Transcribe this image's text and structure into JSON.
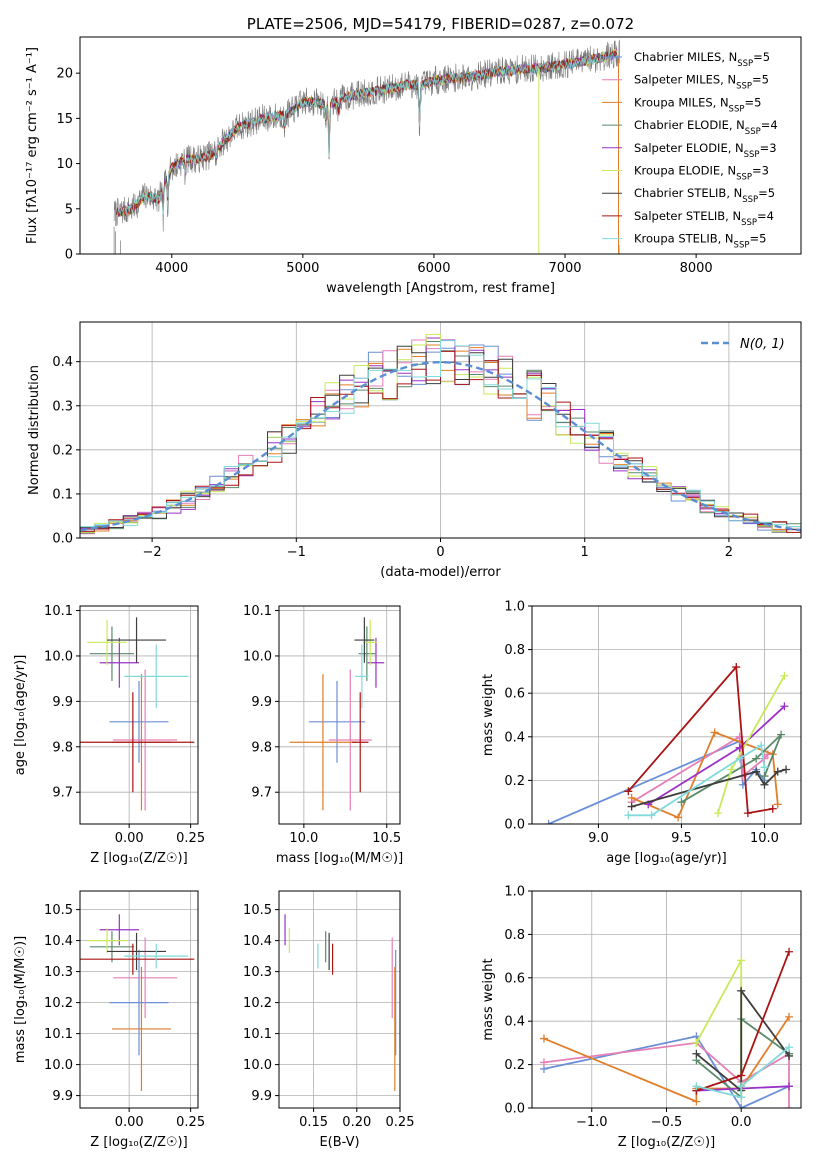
{
  "colors": {
    "Chabrier MILES": "#6a8fd8",
    "Salpeter MILES": "#e57fb8",
    "Kroupa MILES": "#e07e2a",
    "Chabrier ELODIE": "#5a8a6a",
    "Salpeter ELODIE": "#9a32c8",
    "Kroupa ELODIE": "#c8ea5a",
    "Chabrier STELIB": "#3e3e3e",
    "Salpeter STELIB": "#aa1414",
    "Kroupa STELIB": "#80dada"
  },
  "chart_data": [
    {
      "id": "spectrum",
      "type": "line",
      "title": "PLATE=2506, MJD=54179, FIBERID=0287, z=0.072",
      "xlabel": "wavelength [Angstrom, rest frame]",
      "ylabel": "Flux [fλ10⁻¹⁷ erg cm⁻² s⁻¹ A⁻¹]",
      "xlim": [
        3300,
        8800
      ],
      "ylim": [
        0,
        24
      ],
      "xticks": [
        4000,
        5000,
        6000,
        7000,
        8000
      ],
      "yticks": [
        0,
        5,
        10,
        15,
        20
      ],
      "legend": [
        {
          "label": "Chabrier MILES, N",
          "sub": "SSP",
          "val": "=5",
          "color": "#6a8fd8"
        },
        {
          "label": "Salpeter MILES, N",
          "sub": "SSP",
          "val": "=5",
          "color": "#e57fb8"
        },
        {
          "label": "Kroupa MILES, N",
          "sub": "SSP",
          "val": "=5",
          "color": "#e07e2a"
        },
        {
          "label": "Chabrier ELODIE, N",
          "sub": "SSP",
          "val": "=4",
          "color": "#5a8a6a"
        },
        {
          "label": "Salpeter ELODIE, N",
          "sub": "SSP",
          "val": "=3",
          "color": "#9a32c8"
        },
        {
          "label": "Kroupa ELODIE, N",
          "sub": "SSP",
          "val": "=3",
          "color": "#c8ea5a"
        },
        {
          "label": "Chabrier STELIB, N",
          "sub": "SSP",
          "val": "=5",
          "color": "#3e3e3e"
        },
        {
          "label": "Salpeter STELIB, N",
          "sub": "SSP",
          "val": "=4",
          "color": "#aa1414"
        },
        {
          "label": "Kroupa STELIB, N",
          "sub": "SSP",
          "val": "=5",
          "color": "#80dada"
        }
      ],
      "continuum": [
        [
          3560,
          4.5
        ],
        [
          3700,
          5.0
        ],
        [
          3800,
          6.5
        ],
        [
          3900,
          6.0
        ],
        [
          3950,
          8.0
        ],
        [
          4000,
          9.5
        ],
        [
          4100,
          10.5
        ],
        [
          4200,
          10.5
        ],
        [
          4300,
          11.0
        ],
        [
          4400,
          12.5
        ],
        [
          4500,
          14.0
        ],
        [
          4600,
          14.5
        ],
        [
          4700,
          15.0
        ],
        [
          4800,
          15.2
        ],
        [
          4900,
          15.6
        ],
        [
          5000,
          16.8
        ],
        [
          5100,
          16.8
        ],
        [
          5200,
          16.5
        ],
        [
          5300,
          17.2
        ],
        [
          5400,
          17.6
        ],
        [
          5500,
          17.9
        ],
        [
          5600,
          18.1
        ],
        [
          5700,
          18.4
        ],
        [
          5800,
          18.8
        ],
        [
          5900,
          18.6
        ],
        [
          6000,
          19.2
        ],
        [
          6100,
          19.4
        ],
        [
          6200,
          19.5
        ],
        [
          6300,
          19.7
        ],
        [
          6400,
          19.9
        ],
        [
          6500,
          20.2
        ],
        [
          6600,
          20.3
        ],
        [
          6700,
          20.5
        ],
        [
          6800,
          20.6
        ],
        [
          6900,
          20.7
        ],
        [
          7000,
          21.0
        ],
        [
          7100,
          21.2
        ],
        [
          7200,
          21.5
        ],
        [
          7300,
          21.8
        ],
        [
          7400,
          22.2
        ]
      ],
      "dips": [
        [
          3934,
          -3.5
        ],
        [
          3969,
          -3.0
        ],
        [
          4102,
          -1.5
        ],
        [
          4340,
          -1.5
        ],
        [
          4861,
          -2.0
        ],
        [
          5175,
          -3.0
        ],
        [
          5200,
          -7.0
        ],
        [
          5270,
          -1.5
        ],
        [
          5890,
          -5.5
        ]
      ]
    },
    {
      "id": "residuals",
      "type": "line",
      "xlabel": "(data-model)/error",
      "ylabel": "Normed distribution",
      "xlim": [
        -2.5,
        2.5
      ],
      "ylim": [
        0,
        0.49
      ],
      "xticks": [
        -2,
        -1,
        0,
        1,
        2
      ],
      "yticks": [
        0.0,
        0.1,
        0.2,
        0.3,
        0.4
      ],
      "legend": [
        {
          "label": "N(0, 1)",
          "color": "#5b8fd4"
        }
      ],
      "bin_width": 0.1
    },
    {
      "id": "age_vs_Z",
      "type": "scatter",
      "xlabel": "Z [log₁₀(Z/Z☉)]",
      "ylabel": "age  [log₁₀(age/yr)]",
      "xlim": [
        -0.2,
        0.28
      ],
      "ylim": [
        9.63,
        10.11
      ],
      "xticks": [
        0.0,
        0.25
      ],
      "yticks": [
        9.7,
        9.8,
        9.9,
        10.0,
        10.1
      ],
      "points": [
        {
          "model": "Chabrier MILES",
          "x": 0.04,
          "xerr": 0.12,
          "y": 9.855,
          "yerr": 0.09
        },
        {
          "model": "Salpeter MILES",
          "x": 0.065,
          "xerr": 0.13,
          "y": 9.815,
          "yerr": 0.155
        },
        {
          "model": "Kroupa MILES",
          "x": 0.05,
          "xerr": 0.12,
          "y": 9.81,
          "yerr": 0.15
        },
        {
          "model": "Chabrier ELODIE",
          "x": -0.07,
          "xerr": 0.09,
          "y": 10.005,
          "yerr": 0.06
        },
        {
          "model": "Salpeter ELODIE",
          "x": -0.04,
          "xerr": 0.08,
          "y": 9.985,
          "yerr": 0.055
        },
        {
          "model": "Kroupa ELODIE",
          "x": -0.09,
          "xerr": 0.08,
          "y": 10.03,
          "yerr": 0.05
        },
        {
          "model": "Chabrier STELIB",
          "x": 0.03,
          "xerr": 0.12,
          "y": 10.035,
          "yerr": 0.05
        },
        {
          "model": "Salpeter STELIB",
          "x": 0.015,
          "xerr": 0.25,
          "y": 9.81,
          "yerr": 0.11
        },
        {
          "model": "Kroupa STELIB",
          "x": 0.11,
          "xerr": 0.13,
          "y": 9.955,
          "yerr": 0.07
        }
      ]
    },
    {
      "id": "age_vs_mass",
      "type": "scatter",
      "xlabel": "mass [log₁₀(M/M☉)]",
      "ylabel": "",
      "xlim": [
        9.85,
        10.58
      ],
      "ylim": [
        9.63,
        10.11
      ],
      "xticks": [
        10.0,
        10.5
      ],
      "yticks": [
        9.7,
        9.8,
        9.9,
        10.0,
        10.1
      ],
      "points": [
        {
          "model": "Chabrier MILES",
          "x": 10.2,
          "xerr": 0.17,
          "y": 9.855,
          "yerr": 0.09
        },
        {
          "model": "Salpeter MILES",
          "x": 10.28,
          "xerr": 0.13,
          "y": 9.815,
          "yerr": 0.155
        },
        {
          "model": "Kroupa MILES",
          "x": 10.115,
          "xerr": 0.2,
          "y": 9.81,
          "yerr": 0.15
        },
        {
          "model": "Chabrier ELODIE",
          "x": 10.38,
          "xerr": 0.05,
          "y": 10.005,
          "yerr": 0.06
        },
        {
          "model": "Salpeter ELODIE",
          "x": 10.435,
          "xerr": 0.05,
          "y": 9.985,
          "yerr": 0.055
        },
        {
          "model": "Kroupa ELODIE",
          "x": 10.4,
          "xerr": 0.04,
          "y": 10.03,
          "yerr": 0.05
        },
        {
          "model": "Chabrier STELIB",
          "x": 10.365,
          "xerr": 0.06,
          "y": 10.035,
          "yerr": 0.05
        },
        {
          "model": "Salpeter STELIB",
          "x": 10.34,
          "xerr": 0.05,
          "y": 9.81,
          "yerr": 0.11
        },
        {
          "model": "Kroupa STELIB",
          "x": 10.35,
          "xerr": 0.04,
          "y": 9.955,
          "yerr": 0.07
        }
      ]
    },
    {
      "id": "weight_vs_age",
      "type": "line",
      "xlabel": "age  [log₁₀(age/yr)]",
      "ylabel": "mass weight",
      "xlim": [
        8.6,
        10.22
      ],
      "ylim": [
        0,
        1.0
      ],
      "xticks": [
        9.0,
        9.5,
        10.0
      ],
      "yticks": [
        0.0,
        0.2,
        0.4,
        0.6,
        0.8,
        1.0
      ],
      "series": [
        {
          "model": "Chabrier MILES",
          "points": [
            [
              8.7,
              0.0
            ],
            [
              9.85,
              0.38
            ],
            [
              9.87,
              0.18
            ],
            [
              9.95,
              0.25
            ],
            [
              10.0,
              0.2
            ]
          ]
        },
        {
          "model": "Salpeter MILES",
          "points": [
            [
              9.2,
              0.1
            ],
            [
              9.85,
              0.4
            ],
            [
              9.87,
              0.22
            ],
            [
              10.0,
              0.3
            ],
            [
              10.02,
              0.32
            ]
          ]
        },
        {
          "model": "Kroupa MILES",
          "points": [
            [
              9.2,
              0.12
            ],
            [
              9.48,
              0.03
            ],
            [
              9.7,
              0.42
            ],
            [
              10.05,
              0.32
            ],
            [
              10.08,
              0.09
            ]
          ]
        },
        {
          "model": "Chabrier ELODIE",
          "points": [
            [
              9.5,
              0.1
            ],
            [
              9.95,
              0.3
            ],
            [
              10.1,
              0.41
            ],
            [
              10.0,
              0.22
            ]
          ]
        },
        {
          "model": "Salpeter ELODIE",
          "points": [
            [
              9.3,
              0.09
            ],
            [
              9.85,
              0.35
            ],
            [
              10.12,
              0.54
            ]
          ]
        },
        {
          "model": "Kroupa ELODIE",
          "points": [
            [
              9.72,
              0.05
            ],
            [
              9.8,
              0.25
            ],
            [
              10.12,
              0.68
            ]
          ]
        },
        {
          "model": "Chabrier STELIB",
          "points": [
            [
              9.2,
              0.08
            ],
            [
              9.95,
              0.24
            ],
            [
              10.0,
              0.18
            ],
            [
              10.08,
              0.24
            ],
            [
              10.13,
              0.25
            ]
          ]
        },
        {
          "model": "Salpeter STELIB",
          "points": [
            [
              9.18,
              0.15
            ],
            [
              9.83,
              0.72
            ],
            [
              9.9,
              0.05
            ],
            [
              10.05,
              0.07
            ]
          ]
        },
        {
          "model": "Kroupa STELIB",
          "points": [
            [
              9.18,
              0.04
            ],
            [
              9.32,
              0.04
            ],
            [
              9.85,
              0.3
            ],
            [
              9.98,
              0.36
            ],
            [
              10.0,
              0.26
            ]
          ]
        }
      ]
    },
    {
      "id": "mass_vs_Z",
      "type": "scatter",
      "xlabel": "Z [log₁₀(Z/Z☉)]",
      "ylabel": "mass [log₁₀(M/M☉)]",
      "xlim": [
        -0.2,
        0.28
      ],
      "ylim": [
        9.86,
        10.56
      ],
      "xticks": [
        0.0,
        0.25
      ],
      "yticks": [
        9.9,
        10.0,
        10.1,
        10.2,
        10.3,
        10.4,
        10.5
      ],
      "points": [
        {
          "model": "Chabrier MILES",
          "x": 0.04,
          "xerr": 0.12,
          "y": 10.2,
          "yerr": 0.17
        },
        {
          "model": "Salpeter MILES",
          "x": 0.065,
          "xerr": 0.13,
          "y": 10.28,
          "yerr": 0.13
        },
        {
          "model": "Kroupa MILES",
          "x": 0.05,
          "xerr": 0.12,
          "y": 10.115,
          "yerr": 0.2
        },
        {
          "model": "Chabrier ELODIE",
          "x": -0.07,
          "xerr": 0.09,
          "y": 10.38,
          "yerr": 0.05
        },
        {
          "model": "Salpeter ELODIE",
          "x": -0.04,
          "xerr": 0.08,
          "y": 10.435,
          "yerr": 0.05
        },
        {
          "model": "Kroupa ELODIE",
          "x": -0.09,
          "xerr": 0.08,
          "y": 10.4,
          "yerr": 0.04
        },
        {
          "model": "Chabrier STELIB",
          "x": 0.03,
          "xerr": 0.12,
          "y": 10.365,
          "yerr": 0.06
        },
        {
          "model": "Salpeter STELIB",
          "x": 0.015,
          "xerr": 0.25,
          "y": 10.34,
          "yerr": 0.05
        },
        {
          "model": "Kroupa STELIB",
          "x": 0.11,
          "xerr": 0.13,
          "y": 10.35,
          "yerr": 0.04
        }
      ]
    },
    {
      "id": "mass_vs_EBV",
      "type": "scatter",
      "xlabel": "E(B-V)",
      "ylabel": "",
      "xlim": [
        0.11,
        0.25
      ],
      "ylim": [
        9.86,
        10.56
      ],
      "xticks": [
        0.15,
        0.2,
        0.25
      ],
      "yticks": [
        9.9,
        10.0,
        10.1,
        10.2,
        10.3,
        10.4,
        10.5
      ],
      "points": [
        {
          "model": "Chabrier MILES",
          "x": 0.245,
          "xerr": 0,
          "y": 10.2,
          "yerr": 0.17
        },
        {
          "model": "Salpeter MILES",
          "x": 0.241,
          "xerr": 0,
          "y": 10.28,
          "yerr": 0.13
        },
        {
          "model": "Kroupa MILES",
          "x": 0.244,
          "xerr": 0,
          "y": 10.115,
          "yerr": 0.2
        },
        {
          "model": "Chabrier ELODIE",
          "x": 0.164,
          "xerr": 0,
          "y": 10.38,
          "yerr": 0.05
        },
        {
          "model": "Salpeter ELODIE",
          "x": 0.117,
          "xerr": 0,
          "y": 10.435,
          "yerr": 0.05
        },
        {
          "model": "Kroupa ELODIE",
          "x": 0.122,
          "xerr": 0,
          "y": 10.4,
          "yerr": 0.04
        },
        {
          "model": "Chabrier STELIB",
          "x": 0.168,
          "xerr": 0,
          "y": 10.365,
          "yerr": 0.06
        },
        {
          "model": "Salpeter STELIB",
          "x": 0.172,
          "xerr": 0,
          "y": 10.34,
          "yerr": 0.05
        },
        {
          "model": "Kroupa STELIB",
          "x": 0.155,
          "xerr": 0,
          "y": 10.35,
          "yerr": 0.04
        }
      ]
    },
    {
      "id": "weight_vs_Z",
      "type": "line",
      "xlabel": "Z [log₁₀(Z/Z☉)]",
      "ylabel": "mass weight",
      "xlim": [
        -1.4,
        0.4
      ],
      "ylim": [
        0,
        1.0
      ],
      "xticks": [
        -1.0,
        -0.5,
        0.0
      ],
      "yticks": [
        0.0,
        0.2,
        0.4,
        0.6,
        0.8,
        1.0
      ],
      "series": [
        {
          "model": "Chabrier MILES",
          "points": [
            [
              -1.32,
              0.18
            ],
            [
              -0.3,
              0.33
            ],
            [
              0.0,
              0.0
            ],
            [
              0.32,
              0.1
            ]
          ]
        },
        {
          "model": "Salpeter MILES",
          "points": [
            [
              -1.32,
              0.21
            ],
            [
              -0.3,
              0.3
            ],
            [
              0.0,
              0.12
            ],
            [
              0.32,
              0.25
            ],
            [
              0.32,
              0.0
            ]
          ]
        },
        {
          "model": "Kroupa MILES",
          "points": [
            [
              -1.32,
              0.32
            ],
            [
              -0.3,
              0.03
            ],
            [
              -0.3,
              0.09
            ],
            [
              0.0,
              0.09
            ],
            [
              0.32,
              0.42
            ]
          ]
        },
        {
          "model": "Chabrier ELODIE",
          "points": [
            [
              -0.3,
              0.22
            ],
            [
              0.0,
              0.05
            ],
            [
              0.0,
              0.41
            ],
            [
              0.32,
              0.25
            ]
          ]
        },
        {
          "model": "Salpeter ELODIE",
          "points": [
            [
              -0.3,
              0.08
            ],
            [
              0.0,
              0.09
            ],
            [
              0.32,
              0.1
            ]
          ]
        },
        {
          "model": "Kroupa ELODIE",
          "points": [
            [
              -0.3,
              0.3
            ],
            [
              0.0,
              0.68
            ],
            [
              0.0,
              0.05
            ]
          ]
        },
        {
          "model": "Chabrier STELIB",
          "points": [
            [
              -0.3,
              0.25
            ],
            [
              0.0,
              0.08
            ],
            [
              0.0,
              0.54
            ],
            [
              0.32,
              0.24
            ]
          ]
        },
        {
          "model": "Salpeter STELIB",
          "points": [
            [
              -0.3,
              0.08
            ],
            [
              0.0,
              0.15
            ],
            [
              0.32,
              0.72
            ]
          ]
        },
        {
          "model": "Kroupa STELIB",
          "points": [
            [
              -0.3,
              0.1
            ],
            [
              0.0,
              0.05
            ],
            [
              0.0,
              0.1
            ],
            [
              0.32,
              0.28
            ]
          ]
        }
      ]
    }
  ]
}
